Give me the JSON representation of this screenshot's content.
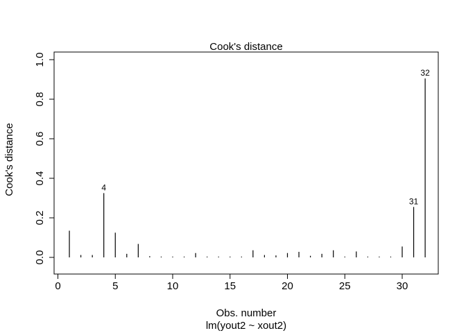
{
  "chart_data": {
    "type": "bar",
    "title": "Cook's distance",
    "xlabel": "Obs. number",
    "subtitle": "lm(yout2 ~ xout2)",
    "ylabel": "Cook's distance",
    "xlim": [
      0,
      33
    ],
    "ylim": [
      0,
      1.0
    ],
    "xticks": [
      "0",
      "5",
      "10",
      "15",
      "20",
      "25",
      "30"
    ],
    "yticks": [
      "0.0",
      "0.2",
      "0.4",
      "0.6",
      "0.8",
      "1.0"
    ],
    "x": [
      1,
      2,
      3,
      4,
      5,
      6,
      7,
      8,
      9,
      10,
      11,
      12,
      13,
      14,
      15,
      16,
      17,
      18,
      19,
      20,
      21,
      22,
      23,
      24,
      25,
      26,
      27,
      28,
      29,
      30,
      31,
      32
    ],
    "values": [
      0.135,
      0.012,
      0.012,
      0.325,
      0.125,
      0.018,
      0.068,
      0.006,
      0.004,
      0.004,
      0.004,
      0.022,
      0.004,
      0.004,
      0.004,
      0.004,
      0.036,
      0.012,
      0.01,
      0.022,
      0.028,
      0.008,
      0.018,
      0.036,
      0.004,
      0.03,
      0.004,
      0.004,
      0.004,
      0.055,
      0.255,
      0.905
    ],
    "labeled_points": [
      {
        "x": 4,
        "label": "4"
      },
      {
        "x": 31,
        "label": "31"
      },
      {
        "x": 32,
        "label": "32"
      }
    ],
    "grid": false,
    "legend": "none"
  }
}
